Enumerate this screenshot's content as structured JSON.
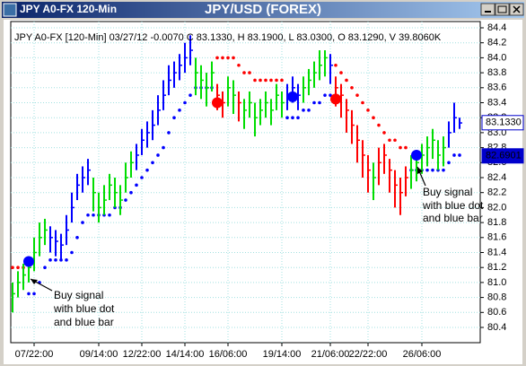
{
  "window_title": "JPY A0-FX 120-Min",
  "chart_data": {
    "type": "ohlc",
    "title": "JPY/USD (FOREX)",
    "header": "JPY A0-FX [120-Min] 03/27/12  -0.0070 C 83.1330, H 83.1900, L 83.0300, O 83.1290, V 39.8060K",
    "categories": [
      null,
      null,
      null,
      null,
      "07/22:00",
      null,
      null,
      null,
      null,
      null,
      null,
      null,
      null,
      null,
      null,
      null,
      "09/14:00",
      null,
      null,
      null,
      null,
      null,
      null,
      null,
      "12/22:00",
      null,
      null,
      null,
      null,
      null,
      null,
      null,
      "14/14:00",
      null,
      null,
      null,
      null,
      null,
      null,
      null,
      "16/06:00",
      null,
      null,
      null,
      null,
      null,
      null,
      null,
      null,
      null,
      "19/14:00",
      null,
      null,
      null,
      null,
      null,
      null,
      null,
      null,
      "21/06:00",
      null,
      null,
      null,
      null,
      null,
      null,
      "22/22:00",
      null,
      null,
      null,
      null,
      null,
      null,
      null,
      null,
      null,
      "26/06:00",
      null,
      null,
      null,
      null,
      null,
      null,
      null
    ],
    "high": [
      81.0,
      81.15,
      81.25,
      81.35,
      81.6,
      81.8,
      81.85,
      81.75,
      81.7,
      81.65,
      81.9,
      82.2,
      82.45,
      82.55,
      82.65,
      82.4,
      82.2,
      82.3,
      82.45,
      82.4,
      82.3,
      82.6,
      82.75,
      82.85,
      83.05,
      83.15,
      83.3,
      83.5,
      83.7,
      83.9,
      83.95,
      84.05,
      84.2,
      84.3,
      84.0,
      83.9,
      83.8,
      83.95,
      83.65,
      83.55,
      83.75,
      83.7,
      83.55,
      83.45,
      83.55,
      83.4,
      83.45,
      83.55,
      83.45,
      83.65,
      83.55,
      83.65,
      83.75,
      83.65,
      83.75,
      83.85,
      83.95,
      84.1,
      84.1,
      84.05,
      83.75,
      83.65,
      83.45,
      83.3,
      83.1,
      82.9,
      82.7,
      82.6,
      82.8,
      82.85,
      82.65,
      82.5,
      82.4,
      82.55,
      82.7,
      82.75,
      82.85,
      82.95,
      83.05,
      82.9,
      82.95,
      83.15,
      83.4,
      83.2
    ],
    "low": [
      80.6,
      80.8,
      80.9,
      81.0,
      81.15,
      81.35,
      81.5,
      81.4,
      81.35,
      81.3,
      81.5,
      81.8,
      82.1,
      82.2,
      82.3,
      81.95,
      81.8,
      81.9,
      82.1,
      82.0,
      81.9,
      82.2,
      82.4,
      82.5,
      82.7,
      82.8,
      82.9,
      83.1,
      83.3,
      83.5,
      83.6,
      83.7,
      83.8,
      83.9,
      83.5,
      83.45,
      83.35,
      83.55,
      83.3,
      83.2,
      83.35,
      83.25,
      83.15,
      83.05,
      83.2,
      82.95,
      83.1,
      83.2,
      83.1,
      83.3,
      83.2,
      83.3,
      83.4,
      83.3,
      83.4,
      83.5,
      83.6,
      83.7,
      83.75,
      83.65,
      83.35,
      83.2,
      83.0,
      82.85,
      82.6,
      82.4,
      82.2,
      82.1,
      82.3,
      82.45,
      82.2,
      82.0,
      81.9,
      82.15,
      82.25,
      82.35,
      82.45,
      82.55,
      82.65,
      82.5,
      82.55,
      82.8,
      83.0,
      83.05
    ],
    "close": [
      80.85,
      81.0,
      81.1,
      81.2,
      81.4,
      81.6,
      81.7,
      81.6,
      81.55,
      81.5,
      81.7,
      82.0,
      82.3,
      82.4,
      82.5,
      82.2,
      82.0,
      82.1,
      82.3,
      82.2,
      82.1,
      82.4,
      82.6,
      82.7,
      82.9,
      83.0,
      83.1,
      83.3,
      83.5,
      83.7,
      83.8,
      83.9,
      84.0,
      84.1,
      83.8,
      83.7,
      83.6,
      83.8,
      83.5,
      83.4,
      83.6,
      83.5,
      83.4,
      83.3,
      83.4,
      83.2,
      83.3,
      83.4,
      83.3,
      83.5,
      83.4,
      83.5,
      83.6,
      83.5,
      83.6,
      83.7,
      83.8,
      83.9,
      84.0,
      83.9,
      83.6,
      83.5,
      83.3,
      83.1,
      82.9,
      82.7,
      82.5,
      82.4,
      82.6,
      82.7,
      82.5,
      82.3,
      82.2,
      82.4,
      82.5,
      82.6,
      82.7,
      82.8,
      82.9,
      82.7,
      82.8,
      83.0,
      83.2,
      83.13
    ],
    "bar_colors": [
      "#00dd00",
      "#00dd00",
      "#00dd00",
      "#00dd00",
      "#00dd00",
      "#00dd00",
      "#00dd00",
      "#0000ff",
      "#0000ff",
      "#0000ff",
      "#0000ff",
      "#0000ff",
      "#0000ff",
      "#0000ff",
      "#0000ff",
      "#00dd00",
      "#00dd00",
      "#00dd00",
      "#00dd00",
      "#00dd00",
      "#00dd00",
      "#00dd00",
      "#00dd00",
      "#0000ff",
      "#0000ff",
      "#0000ff",
      "#0000ff",
      "#0000ff",
      "#0000ff",
      "#0000ff",
      "#0000ff",
      "#0000ff",
      "#0000ff",
      "#0000ff",
      "#00dd00",
      "#00dd00",
      "#00dd00",
      "#00dd00",
      "#ff0000",
      "#ff0000",
      "#00dd00",
      "#00dd00",
      "#ff0000",
      "#00dd00",
      "#00dd00",
      "#00dd00",
      "#00dd00",
      "#00dd00",
      "#00dd00",
      "#00dd00",
      "#00dd00",
      "#0000ff",
      "#0000ff",
      "#0000ff",
      "#00dd00",
      "#00dd00",
      "#00dd00",
      "#00dd00",
      "#00dd00",
      "#0000ff",
      "#ff0000",
      "#ff0000",
      "#ff0000",
      "#ff0000",
      "#ff0000",
      "#ff0000",
      "#ff0000",
      "#00dd00",
      "#ff0000",
      "#ff0000",
      "#ff0000",
      "#ff0000",
      "#ff0000",
      "#ff0000",
      "#00dd00",
      "#00dd00",
      "#00dd00",
      "#00dd00",
      "#00dd00",
      "#00dd00",
      "#00dd00",
      "#0000ff",
      "#0000ff",
      "#0000ff"
    ],
    "support": [
      null,
      null,
      null,
      80.85,
      80.85,
      81.0,
      81.2,
      81.3,
      81.3,
      81.3,
      81.3,
      81.4,
      81.6,
      81.8,
      81.9,
      81.9,
      81.9,
      81.9,
      81.9,
      82.0,
      82.0,
      82.1,
      82.2,
      82.3,
      82.4,
      82.5,
      82.6,
      82.7,
      82.8,
      83.0,
      83.2,
      83.3,
      83.4,
      83.5,
      83.6,
      83.6,
      83.6,
      83.6,
      null,
      null,
      null,
      null,
      null,
      null,
      null,
      null,
      null,
      null,
      null,
      null,
      null,
      83.2,
      83.2,
      83.2,
      83.3,
      83.3,
      83.4,
      83.4,
      83.5,
      83.5,
      null,
      null,
      null,
      null,
      null,
      null,
      null,
      null,
      null,
      null,
      null,
      null,
      null,
      null,
      82.5,
      82.5,
      82.5,
      82.5,
      82.5,
      82.5,
      82.5,
      82.6,
      82.7,
      82.7
    ],
    "support_color": "#0000ff",
    "resistance": [
      81.2,
      81.2,
      81.2,
      null,
      null,
      null,
      null,
      null,
      null,
      null,
      null,
      null,
      null,
      null,
      null,
      null,
      null,
      null,
      null,
      null,
      null,
      null,
      null,
      null,
      null,
      null,
      null,
      null,
      null,
      null,
      null,
      null,
      null,
      null,
      null,
      null,
      null,
      null,
      84.0,
      84.0,
      84.0,
      84.0,
      83.9,
      83.8,
      83.8,
      83.7,
      83.7,
      83.7,
      83.7,
      83.7,
      83.7,
      null,
      null,
      null,
      null,
      null,
      null,
      null,
      null,
      null,
      83.9,
      83.8,
      83.7,
      83.6,
      83.5,
      83.4,
      83.3,
      83.2,
      83.1,
      83.0,
      82.9,
      82.9,
      82.8,
      82.8,
      null,
      null,
      null,
      null,
      null,
      null,
      null,
      null,
      null,
      null
    ],
    "resistance_color": "#ff0000",
    "buy_signal": [
      null,
      null,
      null,
      81.28,
      null,
      null,
      null,
      null,
      null,
      null,
      null,
      null,
      null,
      null,
      null,
      null,
      null,
      null,
      null,
      null,
      null,
      null,
      null,
      null,
      null,
      null,
      null,
      null,
      null,
      null,
      null,
      null,
      null,
      null,
      null,
      null,
      null,
      null,
      null,
      null,
      null,
      null,
      null,
      null,
      null,
      null,
      null,
      null,
      null,
      null,
      null,
      null,
      83.48,
      null,
      null,
      null,
      null,
      null,
      null,
      null,
      null,
      null,
      null,
      null,
      null,
      null,
      null,
      null,
      null,
      null,
      null,
      null,
      null,
      null,
      null,
      82.7,
      null,
      null,
      null,
      null,
      null,
      null,
      null,
      null
    ],
    "sell_signal": [
      null,
      null,
      null,
      null,
      null,
      null,
      null,
      null,
      null,
      null,
      null,
      null,
      null,
      null,
      null,
      null,
      null,
      null,
      null,
      null,
      null,
      null,
      null,
      null,
      null,
      null,
      null,
      null,
      null,
      null,
      null,
      null,
      null,
      null,
      null,
      null,
      null,
      null,
      83.4,
      null,
      null,
      null,
      null,
      null,
      null,
      null,
      null,
      null,
      null,
      null,
      null,
      null,
      null,
      null,
      null,
      null,
      null,
      null,
      null,
      null,
      83.45,
      null,
      null,
      null,
      null,
      null,
      null,
      null,
      null,
      null,
      null,
      null,
      null,
      null,
      null,
      null,
      null,
      null,
      null,
      null,
      null,
      null,
      null,
      null
    ],
    "ylim": [
      80.4,
      84.4
    ],
    "yticks": [
      80.4,
      80.6,
      80.8,
      {
        "value": 81.0,
        "label": "81.0"
      },
      81.2,
      81.4,
      81.6,
      81.8,
      {
        "value": 82.0,
        "label": "82.0"
      },
      82.2,
      82.4,
      82.6,
      82.8,
      {
        "value": 83.0,
        "label": "83.0"
      },
      83.2,
      83.4,
      83.6,
      83.8,
      {
        "value": 84.0,
        "label": "84.0"
      },
      84.2,
      84.4
    ],
    "price_labels": [
      {
        "value": 83.133,
        "label": "83.1330"
      },
      {
        "value": 82.6901,
        "label": "82.6901"
      }
    ],
    "grid": true,
    "annotations": [
      [
        "Buy signal",
        "with blue dot",
        "and blue bar"
      ],
      [
        "Buy signal",
        "with blue dot",
        "and blue bar"
      ]
    ]
  }
}
